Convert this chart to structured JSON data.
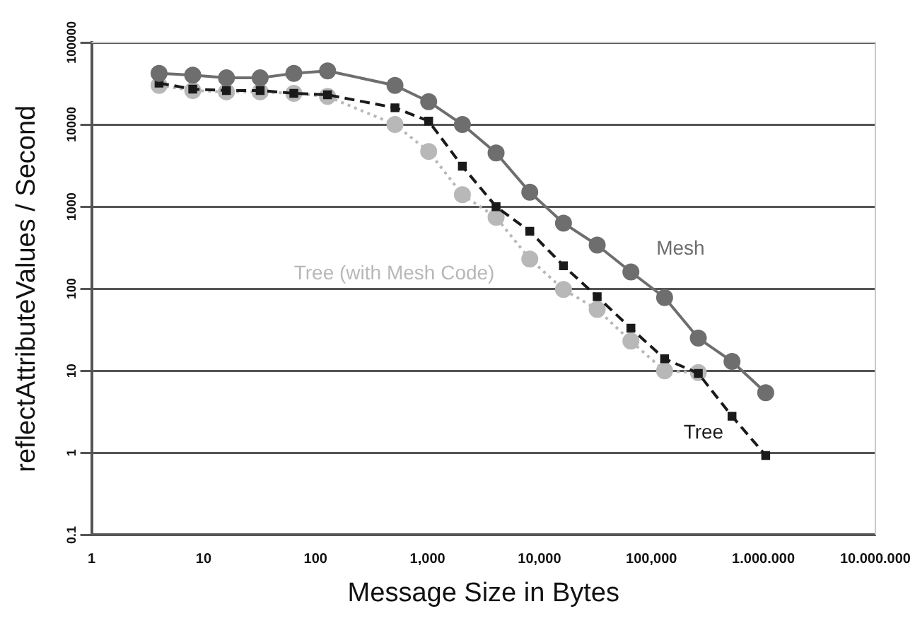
{
  "chart_data": {
    "type": "line",
    "xlabel": "Message Size in Bytes",
    "ylabel": "reflectAttributeValues / Second",
    "log": "xy",
    "grid": "y",
    "legend": false,
    "xlim": [
      1,
      10000000
    ],
    "xticks": [
      1,
      10,
      100,
      {
        "value": 1000,
        "label": "1,000"
      },
      {
        "value": 10000,
        "label": "10,000"
      },
      {
        "value": 100000,
        "label": "100,000"
      },
      {
        "value": 1000000,
        "label": "1.000.000"
      },
      {
        "value": 10000000,
        "label": "10.000.000"
      }
    ],
    "ylim": [
      0.1,
      100000
    ],
    "yticks": [
      0.1,
      1,
      10,
      100,
      1000,
      10000,
      100000
    ],
    "x": [
      4,
      8,
      16,
      32,
      64,
      128,
      512,
      1024,
      2048,
      4096,
      8192,
      16384,
      32768,
      65536,
      131072,
      262144,
      524288,
      1048576
    ],
    "series": [
      {
        "name": "Mesh",
        "color": "#6e6e6e",
        "marker": "circle",
        "line_style": "solid",
        "values": [
          42000,
          40000,
          37000,
          37000,
          42000,
          45000,
          30000,
          19000,
          10000,
          4500,
          1500,
          630,
          340,
          160,
          78,
          25,
          13,
          5.4
        ]
      },
      {
        "name": "Tree",
        "color": "#1a1a1a",
        "marker": "square",
        "line_style": "dashed",
        "values": [
          32000,
          27000,
          26000,
          26000,
          24000,
          23000,
          16000,
          11000,
          3100,
          1000,
          500,
          190,
          80,
          33,
          14,
          9.3,
          2.8,
          0.93
        ]
      },
      {
        "name": "Tree (with Mesh Code)",
        "color": "#b8b8b8",
        "marker": "circle",
        "line_style": "dotted",
        "values": [
          30000,
          26000,
          25000,
          25000,
          24000,
          22000,
          10000,
          4700,
          1400,
          740,
          230,
          98,
          56,
          23,
          10,
          9.5,
          null,
          null
        ]
      }
    ]
  }
}
